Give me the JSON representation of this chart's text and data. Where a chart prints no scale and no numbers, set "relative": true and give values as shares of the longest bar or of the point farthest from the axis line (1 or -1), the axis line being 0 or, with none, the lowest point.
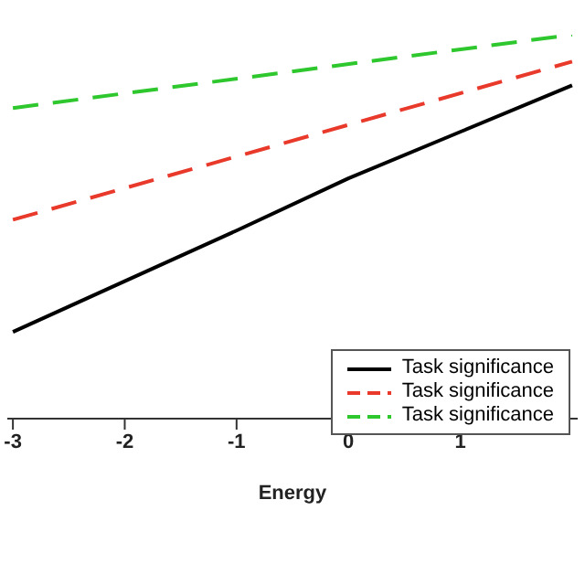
{
  "chart_data": {
    "type": "line",
    "xlabel": "Energy",
    "relative": true,
    "x": [
      -3,
      -2,
      -1,
      0,
      1,
      2
    ],
    "xlim": [
      -3.05,
      2.05
    ],
    "xticks": [
      -3,
      -2,
      -1,
      0,
      1
    ],
    "grid": false,
    "legend": "bottom right",
    "marker": "none",
    "series": [
      {
        "name": "Task significance",
        "color": "#000000",
        "line_style": "solid",
        "values": [
          0.226,
          0.358,
          0.49,
          0.626,
          0.747,
          0.868
        ]
      },
      {
        "name": "Task significance",
        "color": "#e8392b",
        "line_style": "dashed",
        "values": [
          0.518,
          null,
          null,
          null,
          null,
          0.93
        ]
      },
      {
        "name": "Task significance",
        "color": "#2ec72e",
        "line_style": "dashed",
        "values": [
          0.809,
          null,
          null,
          null,
          null,
          1
        ]
      }
    ]
  }
}
